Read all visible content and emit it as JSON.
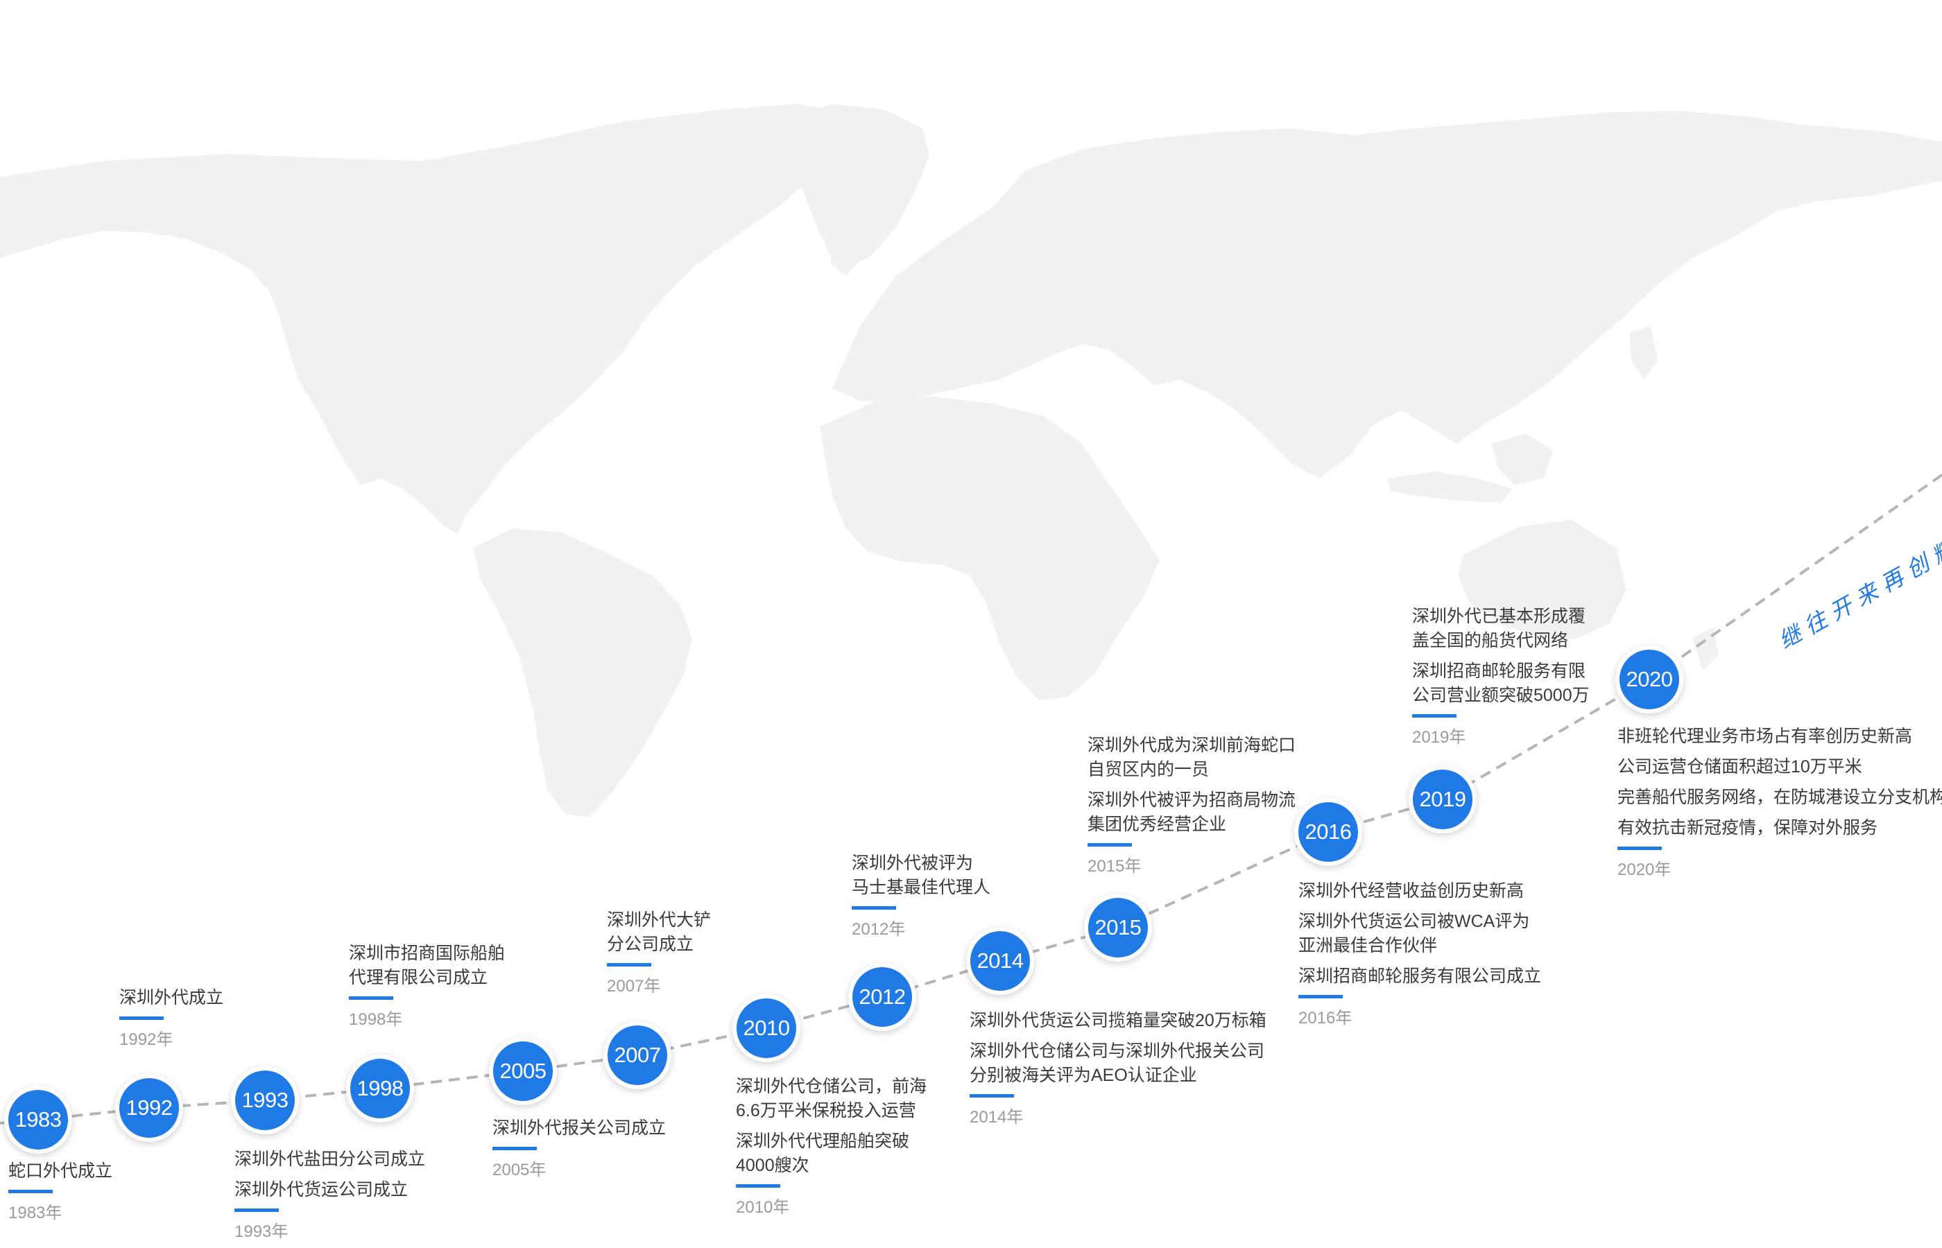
{
  "theme": {
    "accent": "#1f7ae6",
    "map_color": "#f1f1f1",
    "path_color": "#b5b5b5",
    "text_color": "#3a3a3a",
    "year_text_color": "#9a9a9a"
  },
  "slogan": "继往开来再创辉煌",
  "milestones": [
    {
      "year": "1983",
      "year_label": "1983年",
      "events": [
        [
          "蛇口外代成立"
        ]
      ]
    },
    {
      "year": "1992",
      "year_label": "1992年",
      "events": [
        [
          "深圳外代成立"
        ]
      ]
    },
    {
      "year": "1993",
      "year_label": "1993年",
      "events": [
        [
          "深圳外代盐田分公司成立"
        ],
        [
          "深圳外代货运公司成立"
        ]
      ]
    },
    {
      "year": "1998",
      "year_label": "1998年",
      "events": [
        [
          "深圳市招商国际船舶",
          "代理有限公司成立"
        ]
      ]
    },
    {
      "year": "2005",
      "year_label": "2005年",
      "events": [
        [
          "深圳外代报关公司成立"
        ]
      ]
    },
    {
      "year": "2007",
      "year_label": "2007年",
      "events": [
        [
          "深圳外代大铲",
          "分公司成立"
        ]
      ]
    },
    {
      "year": "2010",
      "year_label": "2010年",
      "events": [
        [
          "深圳外代仓储公司，前海",
          "6.6万平米保税投入运营"
        ],
        [
          "深圳外代代理船舶突破",
          "4000艘次"
        ]
      ]
    },
    {
      "year": "2012",
      "year_label": "2012年",
      "events": [
        [
          "深圳外代被评为",
          "马士基最佳代理人"
        ]
      ]
    },
    {
      "year": "2014",
      "year_label": "2014年",
      "events": [
        [
          "深圳外代货运公司揽箱量突破20万标箱"
        ],
        [
          "深圳外代仓储公司与深圳外代报关公司",
          "分别被海关评为AEO认证企业"
        ]
      ]
    },
    {
      "year": "2015",
      "year_label": "2015年",
      "events": [
        [
          "深圳外代成为深圳前海蛇口",
          "自贸区内的一员"
        ],
        [
          "深圳外代被评为招商局物流",
          "集团优秀经营企业"
        ]
      ]
    },
    {
      "year": "2016",
      "year_label": "2016年",
      "events": [
        [
          "深圳外代经营收益创历史新高"
        ],
        [
          "深圳外代货运公司被WCA评为",
          "亚洲最佳合作伙伴"
        ],
        [
          "深圳招商邮轮服务有限公司成立"
        ]
      ]
    },
    {
      "year": "2019",
      "year_label": "2019年",
      "events": [
        [
          "深圳外代已基本形成覆",
          "盖全国的船货代网络"
        ],
        [
          "深圳招商邮轮服务有限",
          "公司营业额突破5000万"
        ]
      ]
    },
    {
      "year": "2020",
      "year_label": "2020年",
      "events": [
        [
          "非班轮代理业务市场占有率创历史新高"
        ],
        [
          "公司运营仓储面积超过10万平米"
        ],
        [
          "完善船代服务网络，在防城港设立分支机构"
        ],
        [
          "有效抗击新冠疫情，保障对外服务"
        ]
      ]
    }
  ]
}
